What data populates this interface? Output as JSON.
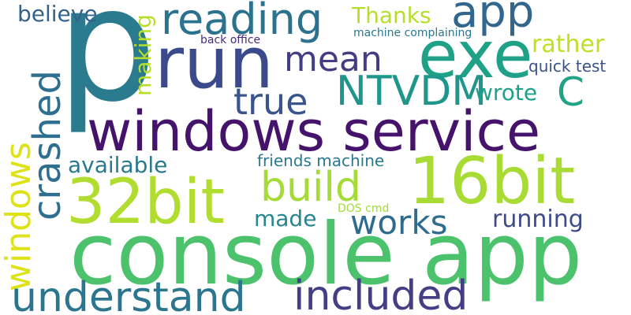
{
  "words": {
    "console_app": {
      "text": "console app",
      "color": "#4cc26c"
    },
    "windows_service": {
      "text": "windows service",
      "color": "#45136b"
    },
    "p": {
      "text": "p",
      "color": "#2a7b8e"
    },
    "run": {
      "text": "run",
      "color": "#3a4a8a"
    },
    "exe": {
      "text": "exe",
      "color": "#1fa187"
    },
    "16bit": {
      "text": "16bit",
      "color": "#a8db34"
    },
    "32bit": {
      "text": "32bit",
      "color": "#b0dd2f"
    },
    "reading": {
      "text": "reading",
      "color": "#2b728e"
    },
    "app": {
      "text": "app",
      "color": "#31668e"
    },
    "mean": {
      "text": "mean",
      "color": "#433d84"
    },
    "NTVDM": {
      "text": "NTVDM",
      "color": "#1f968b"
    },
    "true": {
      "text": "true",
      "color": "#39558c"
    },
    "build": {
      "text": "build",
      "color": "#a5db36"
    },
    "crashed": {
      "text": "crashed",
      "color": "#2e6e8e"
    },
    "windows": {
      "text": "windows",
      "color": "#dde318"
    },
    "understand": {
      "text": "understand",
      "color": "#2b758e"
    },
    "included": {
      "text": "included",
      "color": "#433e85"
    },
    "works": {
      "text": "works",
      "color": "#2f6b8e"
    },
    "C": {
      "text": "C",
      "color": "#20a386"
    },
    "believe": {
      "text": "believe",
      "color": "#33638d"
    },
    "Thanks": {
      "text": "Thanks",
      "color": "#b5de2b"
    },
    "making": {
      "text": "making",
      "color": "#b8de29"
    },
    "rather": {
      "text": "rather",
      "color": "#c0df25"
    },
    "available": {
      "text": "available",
      "color": "#29798e"
    },
    "wrote": {
      "text": "wrote",
      "color": "#1fa088"
    },
    "quick_test": {
      "text": "quick test",
      "color": "#3b518b"
    },
    "running": {
      "text": "running",
      "color": "#3e4a89"
    },
    "made": {
      "text": "made",
      "color": "#24868e"
    },
    "friends_machine": {
      "text": "friends machine",
      "color": "#2a788e"
    },
    "back_office": {
      "text": "back office",
      "color": "#472c7a"
    },
    "machine_complaining": {
      "text": "machine complaining",
      "color": "#2a778e"
    },
    "DOS_cmd": {
      "text": "DOS cmd",
      "color": "#a2da37"
    }
  }
}
